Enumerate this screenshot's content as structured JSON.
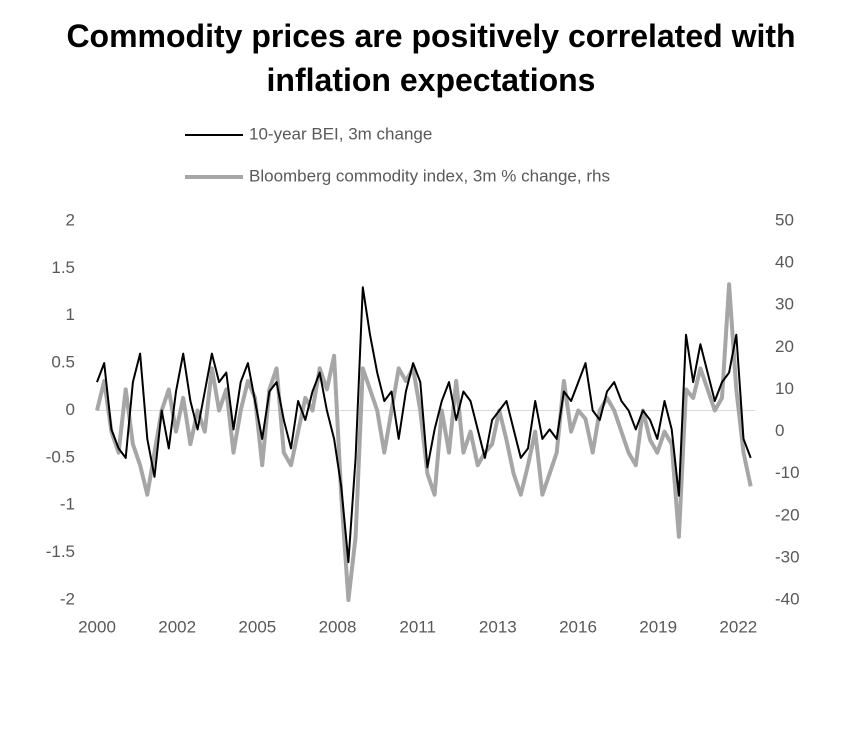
{
  "chart_data": {
    "type": "line",
    "title": "Commodity prices are positively correlated with inflation expectations",
    "x": [
      2000,
      2000.25,
      2000.5,
      2000.75,
      2001,
      2001.25,
      2001.5,
      2001.75,
      2002,
      2002.25,
      2002.5,
      2002.75,
      2003,
      2003.25,
      2003.5,
      2003.75,
      2004,
      2004.25,
      2004.5,
      2004.75,
      2005,
      2005.25,
      2005.5,
      2005.75,
      2006,
      2006.25,
      2006.5,
      2006.75,
      2007,
      2007.25,
      2007.5,
      2007.75,
      2008,
      2008.25,
      2008.5,
      2008.75,
      2009,
      2009.25,
      2009.5,
      2009.75,
      2010,
      2010.25,
      2010.5,
      2010.75,
      2011,
      2011.25,
      2011.5,
      2011.75,
      2012,
      2012.25,
      2012.5,
      2012.75,
      2013,
      2013.25,
      2013.5,
      2013.75,
      2014,
      2014.25,
      2014.5,
      2014.75,
      2015,
      2015.25,
      2015.5,
      2015.75,
      2016,
      2016.25,
      2016.5,
      2016.75,
      2017,
      2017.25,
      2017.5,
      2017.75,
      2018,
      2018.25,
      2018.5,
      2018.75,
      2019,
      2019.25,
      2019.5,
      2019.75,
      2020,
      2020.25,
      2020.5,
      2020.75,
      2021,
      2021.25,
      2021.5,
      2021.75,
      2022,
      2022.25,
      2022.5,
      2022.75
    ],
    "series": [
      {
        "name": "Bloomberg commodity index, 3m % change, rhs",
        "color": "#a6a6a6",
        "axis": "y2",
        "values": [
          5,
          12,
          0,
          -5,
          10,
          -3,
          -8,
          -15,
          -5,
          5,
          10,
          0,
          8,
          -3,
          5,
          0,
          15,
          5,
          10,
          -5,
          5,
          12,
          8,
          -8,
          10,
          15,
          -5,
          -8,
          0,
          8,
          5,
          15,
          10,
          18,
          -15,
          -40,
          -25,
          15,
          10,
          5,
          -5,
          5,
          15,
          12,
          15,
          5,
          -10,
          -15,
          5,
          -5,
          12,
          -5,
          0,
          -8,
          -5,
          -3,
          5,
          -2,
          -10,
          -15,
          -8,
          0,
          -15,
          -10,
          -5,
          12,
          0,
          5,
          3,
          -5,
          5,
          8,
          5,
          0,
          -5,
          -8,
          5,
          -2,
          -5,
          0,
          -3,
          -25,
          10,
          8,
          15,
          10,
          5,
          8,
          35,
          10,
          -5,
          -13
        ]
      },
      {
        "name": "10-year BEI, 3m change",
        "color": "#000000",
        "values": [
          0.3,
          0.5,
          -0.2,
          -0.4,
          -0.5,
          0.3,
          0.6,
          -0.3,
          -0.7,
          0.0,
          -0.4,
          0.2,
          0.6,
          0.1,
          -0.2,
          0.2,
          0.6,
          0.3,
          0.4,
          -0.2,
          0.3,
          0.5,
          0.1,
          -0.3,
          0.2,
          0.3,
          -0.1,
          -0.4,
          0.1,
          -0.1,
          0.2,
          0.4,
          0.0,
          -0.3,
          -0.8,
          -1.6,
          -0.5,
          1.3,
          0.8,
          0.4,
          0.1,
          0.2,
          -0.3,
          0.2,
          0.5,
          0.3,
          -0.6,
          -0.2,
          0.1,
          0.3,
          -0.1,
          0.2,
          0.1,
          -0.2,
          -0.5,
          -0.1,
          0.0,
          0.1,
          -0.2,
          -0.5,
          -0.4,
          0.1,
          -0.3,
          -0.2,
          -0.3,
          0.2,
          0.1,
          0.3,
          0.5,
          0.0,
          -0.1,
          0.2,
          0.3,
          0.1,
          0.0,
          -0.2,
          0.0,
          -0.1,
          -0.3,
          0.1,
          -0.2,
          -0.9,
          0.8,
          0.3,
          0.7,
          0.4,
          0.1,
          0.3,
          0.4,
          0.8,
          -0.3,
          -0.5
        ]
      }
    ],
    "xlim": [
      2000,
      2022.9
    ],
    "xticks": [
      2000,
      {
        "value": 2002.79,
        "label": "2002"
      },
      {
        "value": 2005.58,
        "label": "2005"
      },
      {
        "value": 2008.37,
        "label": "2008"
      },
      {
        "value": 2011.16,
        "label": "2011"
      },
      {
        "value": 2013.95,
        "label": "2013"
      },
      {
        "value": 2016.74,
        "label": "2016"
      },
      {
        "value": 2019.53,
        "label": "2019"
      },
      {
        "value": 2022.32,
        "label": "2022"
      }
    ],
    "ylim": [
      -2,
      2
    ],
    "yticks": [
      -2,
      -1.5,
      -1,
      -0.5,
      0,
      0.5,
      1,
      1.5,
      2
    ],
    "y2lim": [
      -40,
      50
    ],
    "y2ticks": [
      -40,
      -30,
      -20,
      -10,
      0,
      10,
      20,
      30,
      40,
      50
    ]
  }
}
